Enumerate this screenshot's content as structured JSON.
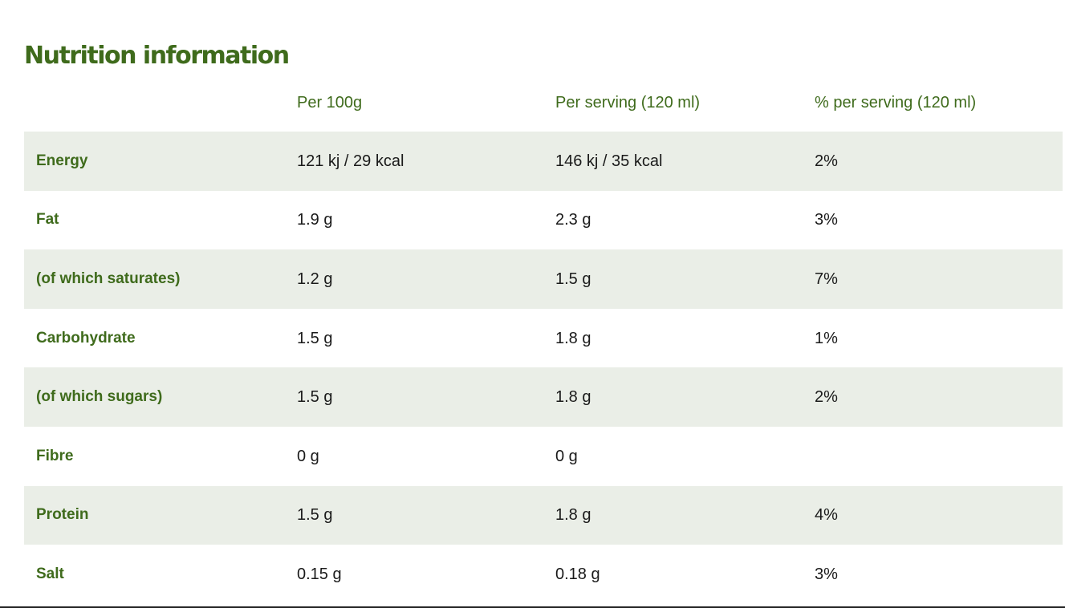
{
  "title": "Nutrition information",
  "columns": [
    "",
    "Per 100g",
    "Per serving (120 ml)",
    "% per serving (120 ml)"
  ],
  "rows": [
    {
      "nutrient": "Energy",
      "per_100g": "121 kj / 29 kcal",
      "per_serving": "146 kj / 35 kcal",
      "pct_serving": "2%"
    },
    {
      "nutrient": "Fat",
      "per_100g": "1.9 g",
      "per_serving": "2.3 g",
      "pct_serving": "3%"
    },
    {
      "nutrient": "(of which saturates)",
      "per_100g": "1.2 g",
      "per_serving": "1.5 g",
      "pct_serving": "7%"
    },
    {
      "nutrient": "Carbohydrate",
      "per_100g": "1.5 g",
      "per_serving": "1.8 g",
      "pct_serving": "1%"
    },
    {
      "nutrient": "(of which sugars)",
      "per_100g": "1.5 g",
      "per_serving": "1.8 g",
      "pct_serving": "2%"
    },
    {
      "nutrient": "Fibre",
      "per_100g": "0 g",
      "per_serving": "0 g",
      "pct_serving": ""
    },
    {
      "nutrient": "Protein",
      "per_100g": "1.5 g",
      "per_serving": "1.8 g",
      "pct_serving": "4%"
    },
    {
      "nutrient": "Salt",
      "per_100g": "0.15 g",
      "per_serving": "0.18 g",
      "pct_serving": "3%"
    }
  ],
  "colors": {
    "heading_green": "#3f6b1c",
    "row_shade": "#eaeee7",
    "value_text": "#1a1a1a"
  }
}
